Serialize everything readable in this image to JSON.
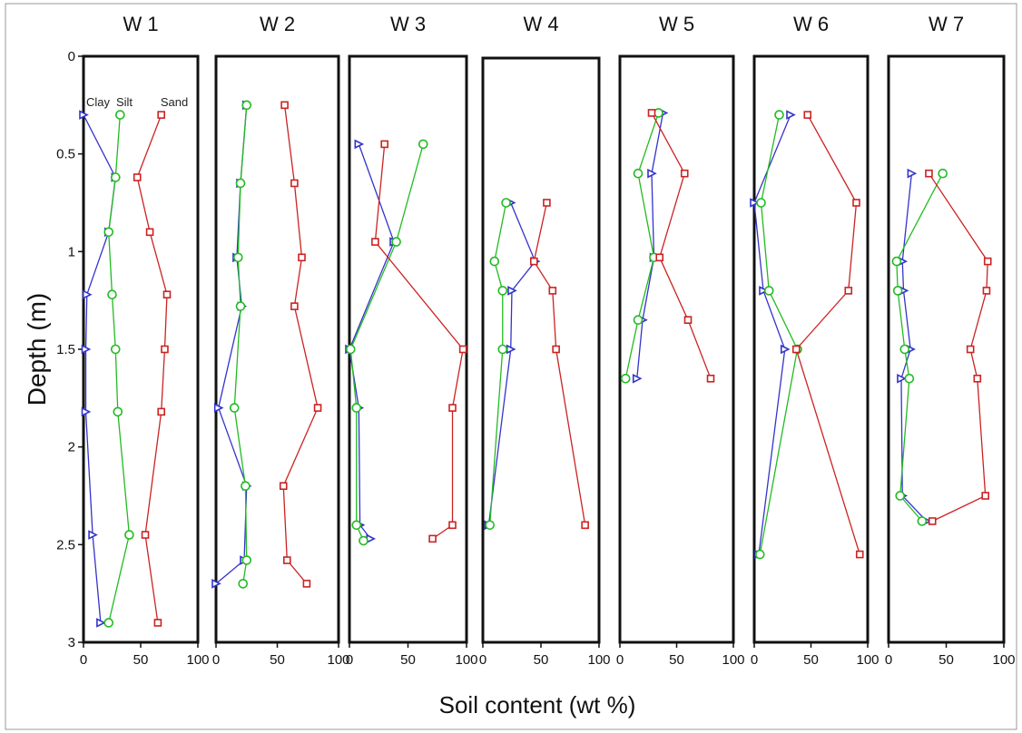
{
  "figure": {
    "ylabel": "Depth (m)",
    "xlabel": "Soil content (wt %)"
  },
  "legend": [
    "Clay",
    "Silt",
    "Sand"
  ],
  "colors": {
    "Clay": "#3333cc",
    "Silt": "#22bb22",
    "Sand": "#cc2222"
  },
  "chart_data": [
    {
      "type": "line",
      "title": "W 1",
      "xlim": [
        0,
        100
      ],
      "ylim": [
        3,
        0
      ],
      "xticks": [
        "0",
        "50",
        "100"
      ],
      "yticks": [
        "0",
        "0.5",
        "1",
        "1.5",
        "2",
        "2.5",
        "3"
      ],
      "ylabel": "Depth (m)",
      "xlabel": "Soil content (wt %)",
      "series": [
        {
          "name": "Clay",
          "marker": "triangle",
          "points": [
            [
              0,
              0.3
            ],
            [
              28,
              0.62
            ],
            [
              22,
              0.9
            ],
            [
              3,
              1.22
            ],
            [
              2,
              1.5
            ],
            [
              2,
              1.82
            ],
            [
              8,
              2.45
            ],
            [
              15,
              2.9
            ]
          ]
        },
        {
          "name": "Silt",
          "marker": "circle",
          "points": [
            [
              32,
              0.3
            ],
            [
              28,
              0.62
            ],
            [
              22,
              0.9
            ],
            [
              25,
              1.22
            ],
            [
              28,
              1.5
            ],
            [
              30,
              1.82
            ],
            [
              40,
              2.45
            ],
            [
              22,
              2.9
            ]
          ]
        },
        {
          "name": "Sand",
          "marker": "square",
          "points": [
            [
              68,
              0.3
            ],
            [
              47,
              0.62
            ],
            [
              58,
              0.9
            ],
            [
              73,
              1.22
            ],
            [
              71,
              1.5
            ],
            [
              68,
              1.82
            ],
            [
              54,
              2.45
            ],
            [
              65,
              2.9
            ]
          ]
        }
      ]
    },
    {
      "type": "line",
      "title": "W 2",
      "xlim": [
        0,
        100
      ],
      "ylim": [
        3,
        0
      ],
      "xticks": [
        "0",
        "50",
        "100"
      ],
      "series": [
        {
          "name": "Clay",
          "marker": "triangle",
          "points": [
            [
              25,
              0.25
            ],
            [
              20,
              0.65
            ],
            [
              17,
              1.03
            ],
            [
              21,
              1.28
            ],
            [
              2,
              1.8
            ],
            [
              25,
              2.2
            ],
            [
              23,
              2.58
            ],
            [
              0,
              2.7
            ]
          ]
        },
        {
          "name": "Silt",
          "marker": "circle",
          "points": [
            [
              25,
              0.25
            ],
            [
              20,
              0.65
            ],
            [
              18,
              1.03
            ],
            [
              20,
              1.28
            ],
            [
              15,
              1.8
            ],
            [
              24,
              2.2
            ],
            [
              25,
              2.58
            ],
            [
              22,
              2.7
            ]
          ]
        },
        {
          "name": "Sand",
          "marker": "square",
          "points": [
            [
              56,
              0.25
            ],
            [
              64,
              0.65
            ],
            [
              70,
              1.03
            ],
            [
              64,
              1.28
            ],
            [
              83,
              1.8
            ],
            [
              55,
              2.2
            ],
            [
              58,
              2.58
            ],
            [
              74,
              2.7
            ]
          ]
        }
      ]
    },
    {
      "type": "line",
      "title": "W 3",
      "xlim": [
        0,
        100
      ],
      "ylim": [
        3,
        0
      ],
      "xticks": [
        "0",
        "50",
        "100"
      ],
      "series": [
        {
          "name": "Clay",
          "marker": "triangle",
          "points": [
            [
              8,
              0.45
            ],
            [
              38,
              0.95
            ],
            [
              0,
              1.5
            ],
            [
              8,
              1.8
            ],
            [
              9,
              2.4
            ],
            [
              18,
              2.47
            ]
          ]
        },
        {
          "name": "Silt",
          "marker": "circle",
          "points": [
            [
              63,
              0.45
            ],
            [
              40,
              0.95
            ],
            [
              1,
              1.5
            ],
            [
              6,
              1.8
            ],
            [
              6,
              2.4
            ],
            [
              12,
              2.48
            ]
          ]
        },
        {
          "name": "Sand",
          "marker": "square",
          "points": [
            [
              30,
              0.45
            ],
            [
              22,
              0.95
            ],
            [
              97,
              1.5
            ],
            [
              88,
              1.8
            ],
            [
              88,
              2.4
            ],
            [
              71,
              2.47
            ]
          ]
        }
      ]
    },
    {
      "type": "line",
      "title": "W 4",
      "xlim": [
        0,
        100
      ],
      "ylim": [
        3,
        0
      ],
      "xticks": [
        "0",
        "50",
        "100"
      ],
      "series": [
        {
          "name": "Clay",
          "marker": "triangle",
          "points": [
            [
              24,
              0.75
            ],
            [
              45,
              1.05
            ],
            [
              25,
              1.2
            ],
            [
              24,
              1.5
            ],
            [
              5,
              2.4
            ]
          ]
        },
        {
          "name": "Silt",
          "marker": "circle",
          "points": [
            [
              20,
              0.75
            ],
            [
              10,
              1.05
            ],
            [
              17,
              1.2
            ],
            [
              17,
              1.5
            ],
            [
              6,
              2.4
            ]
          ]
        },
        {
          "name": "Sand",
          "marker": "square",
          "points": [
            [
              55,
              0.75
            ],
            [
              44,
              1.05
            ],
            [
              60,
              1.2
            ],
            [
              63,
              1.5
            ],
            [
              88,
              2.4
            ]
          ]
        }
      ]
    },
    {
      "type": "line",
      "title": "W 5",
      "xlim": [
        0,
        100
      ],
      "ylim": [
        3,
        0
      ],
      "xticks": [
        "0",
        "50",
        "100"
      ],
      "series": [
        {
          "name": "Clay",
          "marker": "triangle",
          "points": [
            [
              38,
              0.29
            ],
            [
              28,
              0.6
            ],
            [
              30,
              1.03
            ],
            [
              20,
              1.35
            ],
            [
              15,
              1.65
            ]
          ]
        },
        {
          "name": "Silt",
          "marker": "circle",
          "points": [
            [
              34,
              0.29
            ],
            [
              16,
              0.6
            ],
            [
              30,
              1.03
            ],
            [
              16,
              1.35
            ],
            [
              5,
              1.65
            ]
          ]
        },
        {
          "name": "Sand",
          "marker": "square",
          "points": [
            [
              28,
              0.29
            ],
            [
              57,
              0.6
            ],
            [
              35,
              1.03
            ],
            [
              60,
              1.35
            ],
            [
              80,
              1.65
            ]
          ]
        }
      ]
    },
    {
      "type": "line",
      "title": "W 6",
      "xlim": [
        0,
        100
      ],
      "ylim": [
        3,
        0
      ],
      "xticks": [
        "0",
        "50",
        "100"
      ],
      "series": [
        {
          "name": "Clay",
          "marker": "triangle",
          "points": [
            [
              32,
              0.3
            ],
            [
              0,
              0.75
            ],
            [
              8,
              1.2
            ],
            [
              27,
              1.5
            ],
            [
              4,
              2.55
            ]
          ]
        },
        {
          "name": "Silt",
          "marker": "circle",
          "points": [
            [
              22,
              0.3
            ],
            [
              6,
              0.75
            ],
            [
              13,
              1.2
            ],
            [
              38,
              1.5
            ],
            [
              5,
              2.55
            ]
          ]
        },
        {
          "name": "Sand",
          "marker": "square",
          "points": [
            [
              47,
              0.3
            ],
            [
              90,
              0.75
            ],
            [
              83,
              1.2
            ],
            [
              37,
              1.5
            ],
            [
              93,
              2.55
            ]
          ]
        }
      ]
    },
    {
      "type": "line",
      "title": "W 7",
      "xlim": [
        0,
        100
      ],
      "ylim": [
        3,
        0
      ],
      "xticks": [
        "0",
        "50",
        "100"
      ],
      "series": [
        {
          "name": "Clay",
          "marker": "triangle",
          "points": [
            [
              20,
              0.6
            ],
            [
              12,
              1.05
            ],
            [
              13,
              1.2
            ],
            [
              19,
              1.5
            ],
            [
              11,
              1.65
            ],
            [
              12,
              2.25
            ],
            [
              33,
              2.38
            ]
          ]
        },
        {
          "name": "Silt",
          "marker": "circle",
          "points": [
            [
              47,
              0.6
            ],
            [
              7,
              1.05
            ],
            [
              8,
              1.2
            ],
            [
              14,
              1.5
            ],
            [
              18,
              1.65
            ],
            [
              10,
              2.25
            ],
            [
              29,
              2.38
            ]
          ]
        },
        {
          "name": "Sand",
          "marker": "square",
          "points": [
            [
              35,
              0.6
            ],
            [
              86,
              1.05
            ],
            [
              85,
              1.2
            ],
            [
              71,
              1.5
            ],
            [
              77,
              1.65
            ],
            [
              84,
              2.25
            ],
            [
              38,
              2.38
            ]
          ]
        }
      ]
    }
  ]
}
